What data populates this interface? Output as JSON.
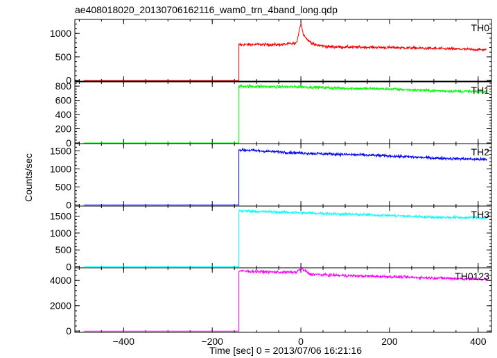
{
  "chart_data": {
    "type": "line",
    "title": "ae408018020_20130706162116_wam0_trn_4band_long.qdp",
    "xlabel": "Time [sec] 0 = 2013/07/06 16:21:16",
    "ylabel": "Counts/sec",
    "xlim": [
      -510,
      430
    ],
    "x_ticks": [
      -400,
      -200,
      0,
      200,
      400
    ],
    "x_tick_labels": [
      "−400",
      "−200",
      "0",
      "200",
      "400"
    ],
    "onset_time": -140,
    "data_start": -490,
    "data_end": 420,
    "grid": false,
    "legend": "none",
    "panels": [
      {
        "name": "TH0",
        "color": "#ff0000",
        "ylim": [
          -20,
          1300
        ],
        "y_ticks": [
          0,
          500,
          1000
        ],
        "y_tick_labels": [
          "0",
          "500",
          "1000"
        ],
        "pre_level": 0,
        "points": [
          [
            -140,
            760
          ],
          [
            -100,
            765
          ],
          [
            -50,
            760
          ],
          [
            -10,
            790
          ],
          [
            0,
            1230
          ],
          [
            5,
            1000
          ],
          [
            15,
            860
          ],
          [
            30,
            760
          ],
          [
            60,
            720
          ],
          [
            100,
            710
          ],
          [
            200,
            700
          ],
          [
            300,
            680
          ],
          [
            420,
            650
          ]
        ]
      },
      {
        "name": "TH1",
        "color": "#00ff00",
        "ylim": [
          -10,
          860
        ],
        "y_ticks": [
          0,
          200,
          400,
          600,
          800
        ],
        "y_tick_labels": [
          "0",
          "200",
          "400",
          "600",
          "800"
        ],
        "pre_level": 0,
        "points": [
          [
            -140,
            800
          ],
          [
            -50,
            790
          ],
          [
            0,
            790
          ],
          [
            100,
            770
          ],
          [
            200,
            760
          ],
          [
            300,
            735
          ],
          [
            420,
            720
          ]
        ]
      },
      {
        "name": "TH2",
        "color": "#0000ff",
        "ylim": [
          -30,
          1700
        ],
        "y_ticks": [
          0,
          500,
          1000,
          1500
        ],
        "y_tick_labels": [
          "0",
          "500",
          "1000",
          "1500"
        ],
        "pre_level": 0,
        "points": [
          [
            -140,
            1530
          ],
          [
            -50,
            1470
          ],
          [
            0,
            1440
          ],
          [
            100,
            1400
          ],
          [
            200,
            1360
          ],
          [
            300,
            1300
          ],
          [
            420,
            1260
          ]
        ]
      },
      {
        "name": "TH3",
        "color": "#00ffff",
        "ylim": [
          -30,
          1800
        ],
        "y_ticks": [
          0,
          500,
          1000,
          1500
        ],
        "y_tick_labels": [
          "0",
          "500",
          "1000",
          "1500"
        ],
        "pre_level": 0,
        "points": [
          [
            -140,
            1660
          ],
          [
            -50,
            1620
          ],
          [
            0,
            1600
          ],
          [
            100,
            1560
          ],
          [
            200,
            1520
          ],
          [
            300,
            1470
          ],
          [
            420,
            1450
          ]
        ]
      },
      {
        "name": "TH0123",
        "color": "#ff00ff",
        "ylim": [
          -100,
          5000
        ],
        "y_ticks": [
          0,
          2000,
          4000
        ],
        "y_tick_labels": [
          "0",
          "2000",
          "4000"
        ],
        "pre_level": 0,
        "points": [
          [
            -140,
            4750
          ],
          [
            -50,
            4650
          ],
          [
            -10,
            4650
          ],
          [
            0,
            4950
          ],
          [
            10,
            4750
          ],
          [
            20,
            4500
          ],
          [
            50,
            4450
          ],
          [
            100,
            4380
          ],
          [
            200,
            4300
          ],
          [
            300,
            4200
          ],
          [
            420,
            4080
          ]
        ]
      }
    ]
  }
}
